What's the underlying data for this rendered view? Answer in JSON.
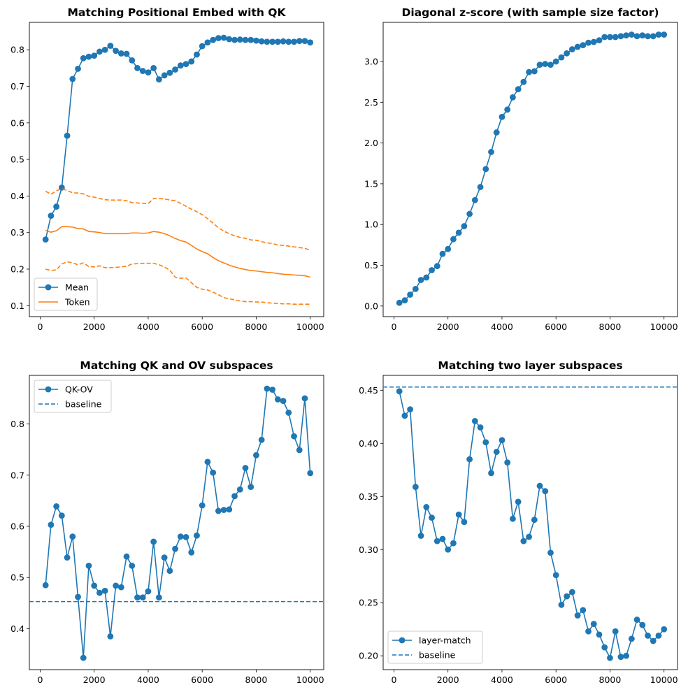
{
  "colors": {
    "blue": "#1f77b4",
    "orange": "#ff7f0e"
  },
  "chart_data": [
    {
      "type": "line",
      "title": "Matching Positional Embed with QK",
      "xlabel": "",
      "ylabel": "",
      "xlim": [
        -400,
        10500
      ],
      "ylim": [
        0.07,
        0.875
      ],
      "xticks": [
        "0",
        "2000",
        "4000",
        "6000",
        "8000",
        "10000"
      ],
      "yticks": [
        "0.1",
        "0.2",
        "0.3",
        "0.4",
        "0.5",
        "0.6",
        "0.7",
        "0.8"
      ],
      "legend": "lower-left",
      "x": [
        200,
        400,
        600,
        800,
        1000,
        1200,
        1400,
        1600,
        1800,
        2000,
        2200,
        2400,
        2600,
        2800,
        3000,
        3200,
        3400,
        3600,
        3800,
        4000,
        4200,
        4400,
        4600,
        4800,
        5000,
        5200,
        5400,
        5600,
        5800,
        6000,
        6200,
        6400,
        6600,
        6800,
        7000,
        7200,
        7400,
        7600,
        7800,
        8000,
        8200,
        8400,
        8600,
        8800,
        9000,
        9200,
        9400,
        9600,
        9800,
        10000
      ],
      "series": [
        {
          "name": "Mean",
          "style": "line-marker",
          "values": [
            0.281,
            0.346,
            0.371,
            0.423,
            0.565,
            0.72,
            0.748,
            0.777,
            0.781,
            0.784,
            0.795,
            0.8,
            0.811,
            0.797,
            0.79,
            0.789,
            0.771,
            0.75,
            0.742,
            0.738,
            0.75,
            0.719,
            0.73,
            0.737,
            0.746,
            0.757,
            0.761,
            0.768,
            0.787,
            0.81,
            0.82,
            0.827,
            0.832,
            0.833,
            0.829,
            0.827,
            0.828,
            0.827,
            0.827,
            0.825,
            0.823,
            0.822,
            0.822,
            0.822,
            0.823,
            0.822,
            0.822,
            0.824,
            0.824,
            0.82
          ]
        },
        {
          "name": "Token",
          "style": "solid",
          "values": [
            0.306,
            0.301,
            0.305,
            0.316,
            0.316,
            0.315,
            0.311,
            0.31,
            0.303,
            0.302,
            0.3,
            0.297,
            0.297,
            0.297,
            0.297,
            0.297,
            0.299,
            0.299,
            0.298,
            0.299,
            0.303,
            0.301,
            0.297,
            0.291,
            0.284,
            0.278,
            0.274,
            0.265,
            0.255,
            0.248,
            0.242,
            0.232,
            0.223,
            0.217,
            0.211,
            0.206,
            0.202,
            0.199,
            0.196,
            0.195,
            0.193,
            0.191,
            0.19,
            0.188,
            0.186,
            0.185,
            0.184,
            0.183,
            0.182,
            0.178
          ]
        },
        {
          "style": "dashed",
          "values": [
            0.413,
            0.405,
            0.414,
            0.42,
            0.415,
            0.409,
            0.408,
            0.406,
            0.399,
            0.397,
            0.393,
            0.39,
            0.389,
            0.389,
            0.389,
            0.387,
            0.382,
            0.381,
            0.38,
            0.379,
            0.393,
            0.393,
            0.392,
            0.389,
            0.387,
            0.38,
            0.372,
            0.364,
            0.357,
            0.349,
            0.338,
            0.326,
            0.313,
            0.304,
            0.297,
            0.291,
            0.287,
            0.284,
            0.28,
            0.279,
            0.275,
            0.272,
            0.27,
            0.266,
            0.265,
            0.263,
            0.261,
            0.259,
            0.257,
            0.252
          ]
        },
        {
          "style": "dashed",
          "values": [
            0.2,
            0.196,
            0.198,
            0.214,
            0.22,
            0.217,
            0.212,
            0.217,
            0.207,
            0.206,
            0.209,
            0.204,
            0.204,
            0.205,
            0.206,
            0.208,
            0.214,
            0.215,
            0.216,
            0.216,
            0.216,
            0.212,
            0.206,
            0.197,
            0.178,
            0.175,
            0.176,
            0.163,
            0.15,
            0.145,
            0.143,
            0.137,
            0.13,
            0.122,
            0.119,
            0.116,
            0.113,
            0.111,
            0.111,
            0.11,
            0.11,
            0.108,
            0.107,
            0.106,
            0.105,
            0.105,
            0.104,
            0.104,
            0.104,
            0.104
          ]
        }
      ]
    },
    {
      "type": "line",
      "title": "Diagonal z-score (with sample size factor)",
      "xlabel": "",
      "ylabel": "",
      "xlim": [
        -400,
        10500
      ],
      "ylim": [
        -0.13,
        3.48
      ],
      "xticks": [
        "0",
        "2000",
        "4000",
        "6000",
        "8000",
        "10000"
      ],
      "yticks": [
        "0.0",
        "0.5",
        "1.0",
        "1.5",
        "2.0",
        "2.5",
        "3.0"
      ],
      "x": [
        200,
        400,
        600,
        800,
        1000,
        1200,
        1400,
        1600,
        1800,
        2000,
        2200,
        2400,
        2600,
        2800,
        3000,
        3200,
        3400,
        3600,
        3800,
        4000,
        4200,
        4400,
        4600,
        4800,
        5000,
        5200,
        5400,
        5600,
        5800,
        6000,
        6200,
        6400,
        6600,
        6800,
        7000,
        7200,
        7400,
        7600,
        7800,
        8000,
        8200,
        8400,
        8600,
        8800,
        9000,
        9200,
        9400,
        9600,
        9800,
        10000
      ],
      "series": [
        {
          "style": "line-marker",
          "values": [
            0.04,
            0.07,
            0.14,
            0.21,
            0.32,
            0.35,
            0.44,
            0.49,
            0.64,
            0.7,
            0.82,
            0.9,
            0.98,
            1.13,
            1.3,
            1.46,
            1.68,
            1.89,
            2.13,
            2.32,
            2.41,
            2.56,
            2.66,
            2.75,
            2.87,
            2.88,
            2.96,
            2.97,
            2.96,
            3.0,
            3.05,
            3.1,
            3.15,
            3.18,
            3.2,
            3.23,
            3.24,
            3.26,
            3.3,
            3.3,
            3.3,
            3.31,
            3.32,
            3.33,
            3.31,
            3.32,
            3.31,
            3.31,
            3.33,
            3.33
          ]
        }
      ]
    },
    {
      "type": "line",
      "title": "Matching QK and OV subspaces",
      "xlabel": "",
      "ylabel": "",
      "xlim": [
        -400,
        10500
      ],
      "ylim": [
        0.32,
        0.895
      ],
      "xticks": [
        "0",
        "2000",
        "4000",
        "6000",
        "8000",
        "10000"
      ],
      "yticks": [
        "0.4",
        "0.5",
        "0.6",
        "0.7",
        "0.8"
      ],
      "legend": "top-left",
      "x": [
        200,
        400,
        600,
        800,
        1000,
        1200,
        1400,
        1600,
        1800,
        2000,
        2200,
        2400,
        2600,
        2800,
        3000,
        3200,
        3400,
        3600,
        3800,
        4000,
        4200,
        4400,
        4600,
        4800,
        5000,
        5200,
        5400,
        5600,
        5800,
        6000,
        6200,
        6400,
        6600,
        6800,
        7000,
        7200,
        7400,
        7600,
        7800,
        8000,
        8200,
        8400,
        8600,
        8800,
        9000,
        9200,
        9400,
        9600,
        9800,
        10000
      ],
      "series": [
        {
          "name": "QK-OV",
          "style": "line-marker",
          "values": [
            0.485,
            0.603,
            0.639,
            0.621,
            0.539,
            0.58,
            0.462,
            0.343,
            0.523,
            0.484,
            0.47,
            0.474,
            0.385,
            0.484,
            0.481,
            0.541,
            0.523,
            0.461,
            0.461,
            0.473,
            0.57,
            0.461,
            0.539,
            0.513,
            0.556,
            0.58,
            0.579,
            0.549,
            0.582,
            0.641,
            0.726,
            0.705,
            0.63,
            0.632,
            0.633,
            0.659,
            0.672,
            0.714,
            0.677,
            0.739,
            0.769,
            0.869,
            0.867,
            0.848,
            0.845,
            0.822,
            0.776,
            0.749,
            0.85,
            0.704
          ]
        },
        {
          "name": "baseline",
          "style": "dashed-hline",
          "value": 0.453
        }
      ]
    },
    {
      "type": "line",
      "title": "Matching two layer subspaces",
      "xlabel": "",
      "ylabel": "",
      "xlim": [
        -400,
        10500
      ],
      "ylim": [
        0.187,
        0.464
      ],
      "xticks": [
        "0",
        "2000",
        "4000",
        "6000",
        "8000",
        "10000"
      ],
      "yticks": [
        "0.20",
        "0.25",
        "0.30",
        "0.35",
        "0.40",
        "0.45"
      ],
      "legend": "lower-left",
      "x": [
        200,
        400,
        600,
        800,
        1000,
        1200,
        1400,
        1600,
        1800,
        2000,
        2200,
        2400,
        2600,
        2800,
        3000,
        3200,
        3400,
        3600,
        3800,
        4000,
        4200,
        4400,
        4600,
        4800,
        5000,
        5200,
        5400,
        5600,
        5800,
        6000,
        6200,
        6400,
        6600,
        6800,
        7000,
        7200,
        7400,
        7600,
        7800,
        8000,
        8200,
        8400,
        8600,
        8800,
        9000,
        9200,
        9400,
        9600,
        9800,
        10000
      ],
      "series": [
        {
          "name": "layer-match",
          "style": "line-marker",
          "values": [
            0.449,
            0.426,
            0.432,
            0.359,
            0.313,
            0.34,
            0.33,
            0.308,
            0.31,
            0.3,
            0.306,
            0.333,
            0.326,
            0.385,
            0.421,
            0.415,
            0.401,
            0.372,
            0.392,
            0.403,
            0.382,
            0.329,
            0.345,
            0.308,
            0.312,
            0.328,
            0.36,
            0.355,
            0.297,
            0.276,
            0.248,
            0.256,
            0.26,
            0.238,
            0.243,
            0.223,
            0.23,
            0.22,
            0.208,
            0.198,
            0.223,
            0.199,
            0.2,
            0.216,
            0.234,
            0.229,
            0.219,
            0.214,
            0.219,
            0.225
          ]
        },
        {
          "name": "baseline",
          "style": "dashed-hline",
          "value": 0.453
        }
      ]
    }
  ]
}
